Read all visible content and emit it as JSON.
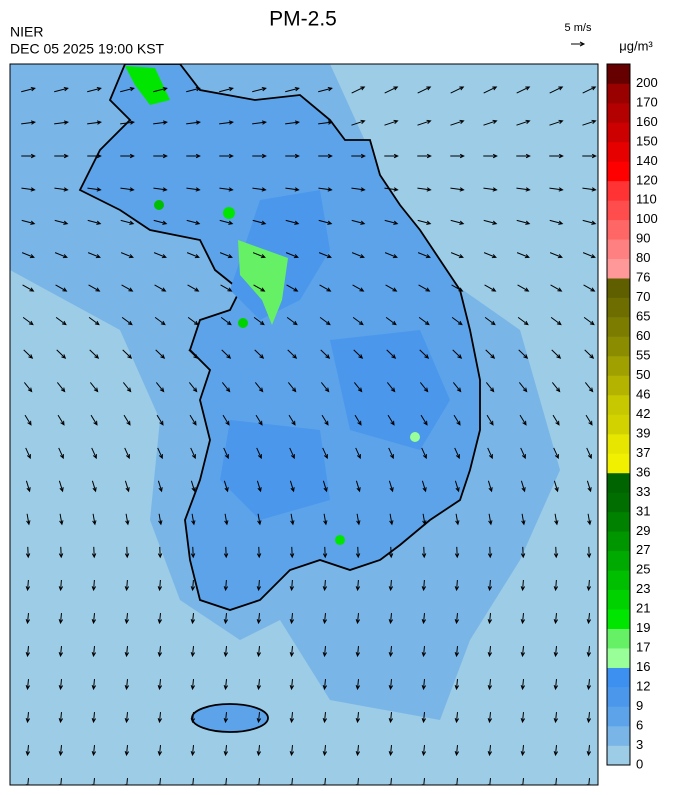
{
  "header": {
    "title": "PM-2.5",
    "agency": "NIER",
    "datetime": "DEC 05 2025 19:00 KST"
  },
  "wind_legend": {
    "label": "5 m/s"
  },
  "colorbar": {
    "unit": "μg/m³",
    "ticks": [
      0,
      3,
      6,
      9,
      12,
      16,
      17,
      19,
      21,
      23,
      25,
      27,
      29,
      31,
      33,
      36,
      37,
      39,
      42,
      46,
      50,
      55,
      60,
      65,
      70,
      76,
      80,
      90,
      100,
      110,
      120,
      140,
      150,
      160,
      170,
      200
    ],
    "colors": [
      "#9ccce6",
      "#79b5e6",
      "#5ca3ea",
      "#4a97ec",
      "#3d8ff0",
      "#99ff99",
      "#66f066",
      "#00e600",
      "#00d200",
      "#00be00",
      "#00aa00",
      "#009600",
      "#008200",
      "#006e00",
      "#006400",
      "#f0f000",
      "#e6e600",
      "#d2d200",
      "#c8c800",
      "#b4b400",
      "#a0a000",
      "#8c8c00",
      "#7c7c00",
      "#6e6e00",
      "#5f5f00",
      "#ff9999",
      "#ff8080",
      "#ff6666",
      "#ff4d4d",
      "#ff3333",
      "#ff0000",
      "#e60000",
      "#cc0000",
      "#b30000",
      "#990000",
      "#660000"
    ]
  }
}
